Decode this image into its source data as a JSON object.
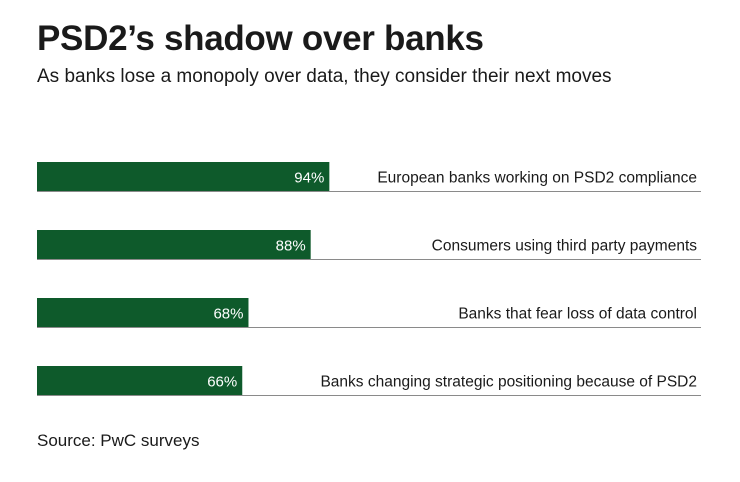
{
  "header": {
    "title": "PSD2’s shadow over banks",
    "subtitle": "As banks lose a monopoly over data, they consider their next moves"
  },
  "footer": {
    "source": "Source: PwC surveys"
  },
  "colors": {
    "bar": "#0e5a2b",
    "bar_label": "#ffffff",
    "baseline": "#8a8a8a",
    "text": "#1a1a1a"
  },
  "chart_data": {
    "type": "bar",
    "orientation": "horizontal",
    "categories": [
      "European banks working on PSD2 compliance",
      "Consumers using third party payments",
      "Banks that fear loss of data control",
      "Banks changing strategic positioning because of PSD2"
    ],
    "values": [
      94,
      88,
      68,
      66
    ],
    "value_labels": [
      "94%",
      "88%",
      "68%",
      "66%"
    ],
    "unit": "%",
    "xlim": [
      0,
      100
    ],
    "title": "PSD2’s shadow over banks",
    "subtitle": "As banks lose a monopoly over data, they consider their next moves",
    "xlabel": "",
    "ylabel": "",
    "grid": false,
    "legend": "none"
  }
}
